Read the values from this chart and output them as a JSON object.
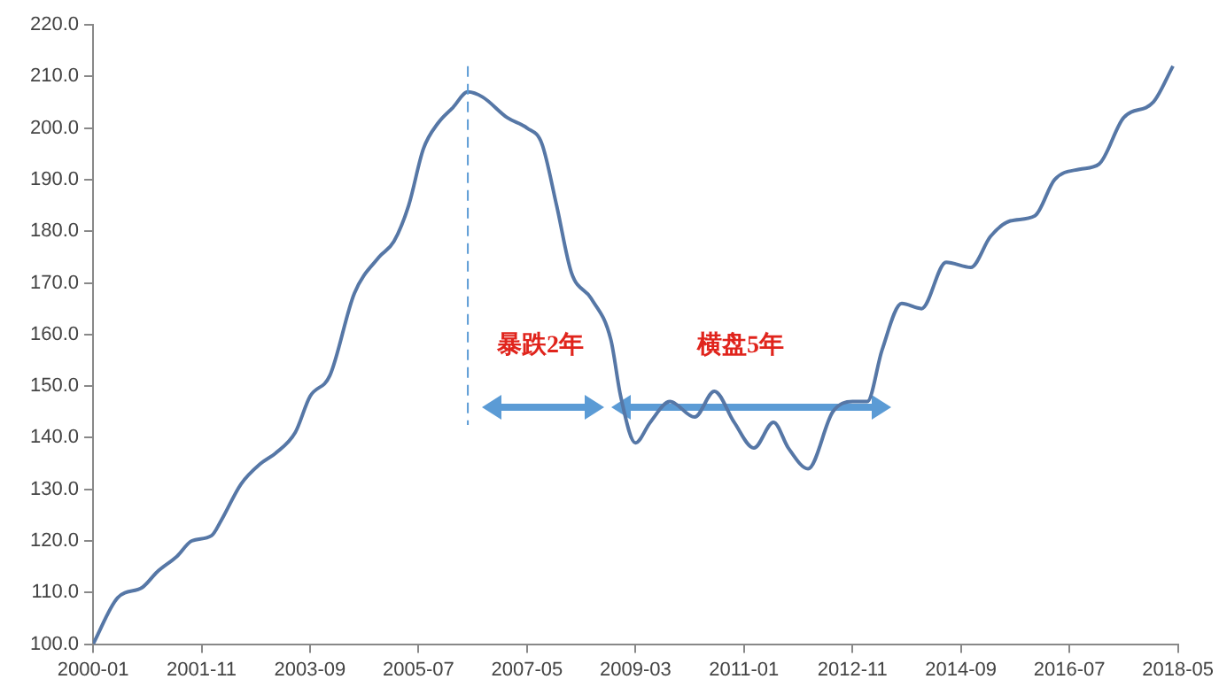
{
  "chart_data": {
    "type": "line",
    "x": [
      "2000-01",
      "2000-06",
      "2000-11",
      "2001-02",
      "2001-06",
      "2001-09",
      "2002-01",
      "2002-03",
      "2002-07",
      "2002-11",
      "2003-02",
      "2003-06",
      "2003-09",
      "2004-01",
      "2004-06",
      "2004-11",
      "2005-02",
      "2005-05",
      "2005-08",
      "2005-11",
      "2006-02",
      "2006-05",
      "2006-08",
      "2007-01",
      "2007-05",
      "2007-08",
      "2007-11",
      "2008-02",
      "2008-06",
      "2008-10",
      "2008-12",
      "2009-03",
      "2009-06",
      "2009-10",
      "2010-03",
      "2010-07",
      "2010-11",
      "2011-03",
      "2011-07",
      "2011-10",
      "2012-02",
      "2012-07",
      "2012-11",
      "2013-02",
      "2013-05",
      "2013-09",
      "2014-01",
      "2014-06",
      "2014-11",
      "2015-03",
      "2015-07",
      "2015-12",
      "2016-04",
      "2016-09",
      "2017-01",
      "2017-06",
      "2017-12",
      "2018-04"
    ],
    "series": [
      {
        "color": "#5677a6",
        "values": [
          100,
          109,
          111,
          114,
          117,
          120,
          121,
          124,
          131,
          135,
          137,
          141,
          148,
          152,
          168,
          175,
          178,
          185,
          196,
          201,
          204,
          207,
          206,
          202,
          200,
          197,
          185,
          172,
          167,
          159,
          148,
          139,
          143,
          147,
          144,
          149,
          143,
          138,
          143,
          138,
          134,
          145,
          147,
          147,
          157,
          166,
          165,
          174,
          173,
          179,
          182,
          183,
          190,
          192,
          193,
          202,
          205,
          212
        ]
      }
    ],
    "xlim": [
      "2000-01",
      "2018-05"
    ],
    "xticks": [
      "2000-01",
      "2001-11",
      "2003-09",
      "2005-07",
      "2007-05",
      "2009-03",
      "2011-01",
      "2012-11",
      "2014-09",
      "2016-07",
      "2018-05"
    ],
    "ylim": [
      100,
      220
    ],
    "yticks": [
      {
        "value": 100,
        "label": "100.0"
      },
      {
        "value": 110,
        "label": "110.0"
      },
      {
        "value": 120,
        "label": "120.0"
      },
      {
        "value": 130,
        "label": "130.0"
      },
      {
        "value": 140,
        "label": "140.0"
      },
      {
        "value": 150,
        "label": "150.0"
      },
      {
        "value": 160,
        "label": "160.0"
      },
      {
        "value": 170,
        "label": "170.0"
      },
      {
        "value": 180,
        "label": "180.0"
      },
      {
        "value": 190,
        "label": "190.0"
      },
      {
        "value": 200,
        "label": "200.0"
      },
      {
        "value": 210,
        "label": "210.0"
      },
      {
        "value": 220,
        "label": "220.0"
      }
    ],
    "ref_lines": [
      {
        "axis": "x",
        "value": "2006-05",
        "color": "#5b9bd5",
        "line_style": "dashed"
      }
    ],
    "annotations": [
      "暴跌2年",
      "横盘5年"
    ],
    "grid": false,
    "legend": false,
    "marker": "none",
    "line_style": "solid"
  }
}
